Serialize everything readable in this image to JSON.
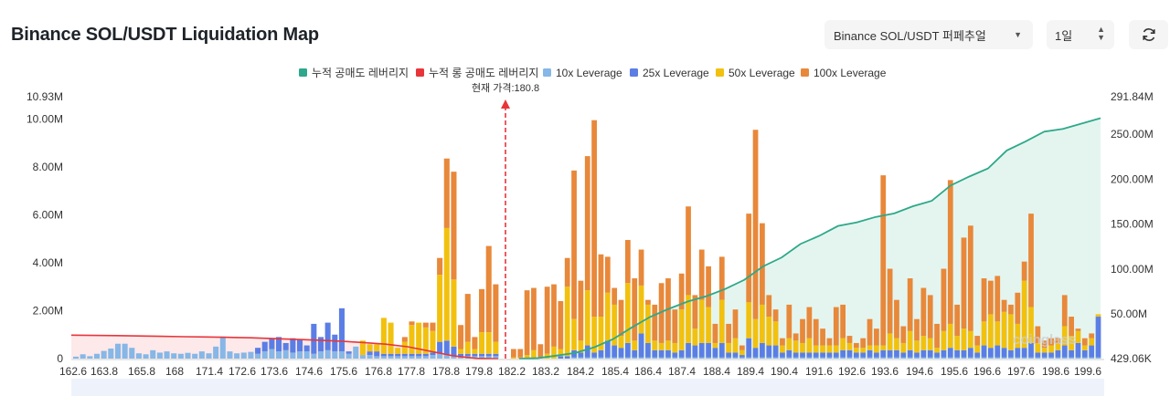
{
  "header": {
    "title": "Binance SOL/USDT Liquidation Map",
    "pair_select": "Binance SOL/USDT 퍼페추얼",
    "period_select": "1일",
    "refresh_icon": "refresh-icon",
    "dropdown_icon": "caret-down-icon",
    "stepper_icon": "up-down-caret-icon"
  },
  "chart_data": {
    "type": "bar",
    "legend": [
      {
        "name": "누적 공매도 레버리지",
        "color": "#2ea88a"
      },
      {
        "name": "누적 롱 공매도 레버리지",
        "color": "#e8353a"
      },
      {
        "name": "10x Leverage",
        "color": "#86b7e6"
      },
      {
        "name": "25x Leverage",
        "color": "#5b7ee5"
      },
      {
        "name": "50x Leverage",
        "color": "#f2c10f"
      },
      {
        "name": "100x Leverage",
        "color": "#e8883a"
      }
    ],
    "legend_position": "top-center",
    "current_price": 180.8,
    "current_price_label": "현재 가격:180.8",
    "x_ticks": [
      "162.6",
      "163.8",
      "165.8",
      "168",
      "171.4",
      "172.6",
      "173.6",
      "174.6",
      "175.6",
      "176.8",
      "177.8",
      "178.8",
      "179.8",
      "182.2",
      "183.2",
      "184.2",
      "185.4",
      "186.4",
      "187.4",
      "188.4",
      "189.4",
      "190.4",
      "191.6",
      "192.6",
      "193.6",
      "194.6",
      "195.6",
      "196.6",
      "197.6",
      "198.6",
      "199.6"
    ],
    "y_left_ticks": [
      "0",
      "2.00M",
      "4.00M",
      "6.00M",
      "8.00M",
      "10.00M",
      "10.93M"
    ],
    "y_left_max": 10930000,
    "y_right_ticks": [
      "429.06K",
      "50.00M",
      "100.00M",
      "150.00M",
      "200.00M",
      "250.00M",
      "291.84M"
    ],
    "y_right_min": 429060,
    "y_right_max": 291840000,
    "bars_left_of_price": [
      {
        "l10": 0.08,
        "l25": 0,
        "l50": 0,
        "l100": 0
      },
      {
        "l10": 0.18,
        "l25": 0,
        "l50": 0,
        "l100": 0
      },
      {
        "l10": 0.1,
        "l25": 0,
        "l50": 0,
        "l100": 0
      },
      {
        "l10": 0.2,
        "l25": 0,
        "l50": 0,
        "l100": 0
      },
      {
        "l10": 0.32,
        "l25": 0,
        "l50": 0,
        "l100": 0
      },
      {
        "l10": 0.42,
        "l25": 0,
        "l50": 0,
        "l100": 0
      },
      {
        "l10": 0.62,
        "l25": 0,
        "l50": 0,
        "l100": 0
      },
      {
        "l10": 0.62,
        "l25": 0,
        "l50": 0,
        "l100": 0
      },
      {
        "l10": 0.45,
        "l25": 0,
        "l50": 0,
        "l100": 0
      },
      {
        "l10": 0.22,
        "l25": 0,
        "l50": 0,
        "l100": 0
      },
      {
        "l10": 0.18,
        "l25": 0,
        "l50": 0,
        "l100": 0
      },
      {
        "l10": 0.35,
        "l25": 0,
        "l50": 0,
        "l100": 0
      },
      {
        "l10": 0.25,
        "l25": 0,
        "l50": 0,
        "l100": 0
      },
      {
        "l10": 0.3,
        "l25": 0,
        "l50": 0,
        "l100": 0
      },
      {
        "l10": 0.22,
        "l25": 0,
        "l50": 0,
        "l100": 0
      },
      {
        "l10": 0.2,
        "l25": 0,
        "l50": 0,
        "l100": 0
      },
      {
        "l10": 0.24,
        "l25": 0,
        "l50": 0,
        "l100": 0
      },
      {
        "l10": 0.2,
        "l25": 0,
        "l50": 0,
        "l100": 0
      },
      {
        "l10": 0.3,
        "l25": 0,
        "l50": 0,
        "l100": 0
      },
      {
        "l10": 0.22,
        "l25": 0,
        "l50": 0,
        "l100": 0
      },
      {
        "l10": 0.5,
        "l25": 0,
        "l50": 0,
        "l100": 0
      },
      {
        "l10": 0.92,
        "l25": 0,
        "l50": 0,
        "l100": 0
      },
      {
        "l10": 0.3,
        "l25": 0,
        "l50": 0,
        "l100": 0
      },
      {
        "l10": 0.22,
        "l25": 0,
        "l50": 0,
        "l100": 0
      },
      {
        "l10": 0.25,
        "l25": 0,
        "l50": 0,
        "l100": 0
      },
      {
        "l10": 0.28,
        "l25": 0,
        "l50": 0,
        "l100": 0
      },
      {
        "l10": 0.2,
        "l25": 0.25,
        "l50": 0,
        "l100": 0
      },
      {
        "l10": 0.3,
        "l25": 0.4,
        "l50": 0,
        "l100": 0
      },
      {
        "l10": 0.4,
        "l25": 0.45,
        "l50": 0,
        "l100": 0
      },
      {
        "l10": 0.3,
        "l25": 0.6,
        "l50": 0,
        "l100": 0
      },
      {
        "l10": 0.35,
        "l25": 0.3,
        "l50": 0,
        "l100": 0
      },
      {
        "l10": 0.25,
        "l25": 0.6,
        "l50": 0,
        "l100": 0
      },
      {
        "l10": 0.3,
        "l25": 0.5,
        "l50": 0,
        "l100": 0
      },
      {
        "l10": 0.3,
        "l25": 0.25,
        "l50": 0,
        "l100": 0
      },
      {
        "l10": 0.2,
        "l25": 1.25,
        "l50": 0,
        "l100": 0
      },
      {
        "l10": 0.3,
        "l25": 0.6,
        "l50": 0,
        "l100": 0
      },
      {
        "l10": 0.35,
        "l25": 1.15,
        "l50": 0,
        "l100": 0
      },
      {
        "l10": 0.3,
        "l25": 0.7,
        "l50": 0,
        "l100": 0
      },
      {
        "l10": 0.3,
        "l25": 1.8,
        "l50": 0,
        "l100": 0
      },
      {
        "l10": 0.2,
        "l25": 0.1,
        "l50": 0,
        "l100": 0
      },
      {
        "l10": 0.5,
        "l25": 0,
        "l50": 0,
        "l100": 0
      },
      {
        "l10": 0.15,
        "l25": 0,
        "l50": 0.6,
        "l100": 0
      },
      {
        "l10": 0.15,
        "l25": 0.15,
        "l50": 0.3,
        "l100": 0
      },
      {
        "l10": 0.1,
        "l25": 0.2,
        "l50": 0.3,
        "l100": 0
      },
      {
        "l10": 0.1,
        "l25": 0.1,
        "l50": 1.5,
        "l100": 0
      },
      {
        "l10": 0.1,
        "l25": 0.1,
        "l50": 1.3,
        "l100": 0
      },
      {
        "l10": 0.1,
        "l25": 0.1,
        "l50": 0.25,
        "l100": 0
      },
      {
        "l10": 0.1,
        "l25": 0.1,
        "l50": 0.5,
        "l100": 0.2
      },
      {
        "l10": 0.1,
        "l25": 0.1,
        "l50": 1.2,
        "l100": 0.15
      },
      {
        "l10": 0.1,
        "l25": 0.1,
        "l50": 1.3,
        "l100": 0
      },
      {
        "l10": 0.1,
        "l25": 0.1,
        "l50": 1.1,
        "l100": 0.2
      },
      {
        "l10": 0.15,
        "l25": 0.1,
        "l50": 0.9,
        "l100": 0.35
      },
      {
        "l10": 0.2,
        "l25": 0.5,
        "l50": 2.8,
        "l100": 0.7
      },
      {
        "l10": 0.15,
        "l25": 0.6,
        "l50": 4.7,
        "l100": 2.9
      },
      {
        "l10": 0.1,
        "l25": 0.4,
        "l50": 2.8,
        "l100": 4.5
      },
      {
        "l10": 0.1,
        "l25": 0.1,
        "l50": 0.2,
        "l100": 1.0
      },
      {
        "l10": 0.1,
        "l25": 0.1,
        "l50": 0.5,
        "l100": 2.0
      },
      {
        "l10": 0.1,
        "l25": 0.1,
        "l50": 0.2,
        "l100": 0.5
      },
      {
        "l10": 0.1,
        "l25": 0.1,
        "l50": 0.9,
        "l100": 1.8
      },
      {
        "l10": 0.1,
        "l25": 0.1,
        "l50": 0.9,
        "l100": 3.6
      },
      {
        "l10": 0.1,
        "l25": 0.1,
        "l50": 0.5,
        "l100": 2.4
      }
    ],
    "bars_right_of_price": [
      {
        "l10": 0,
        "l25": 0,
        "l50": 0.05,
        "l100": 0.35
      },
      {
        "l10": 0,
        "l25": 0,
        "l50": 0.05,
        "l100": 0.35
      },
      {
        "l10": 0,
        "l25": 0,
        "l50": 0.15,
        "l100": 2.7
      },
      {
        "l10": 0,
        "l25": 0,
        "l50": 0.35,
        "l100": 2.6
      },
      {
        "l10": 0,
        "l25": 0,
        "l50": 0.05,
        "l100": 0.55
      },
      {
        "l10": 0,
        "l25": 0,
        "l50": 0.2,
        "l100": 2.8
      },
      {
        "l10": 0,
        "l25": 0,
        "l50": 0.5,
        "l100": 2.6
      },
      {
        "l10": 0,
        "l25": 0.1,
        "l50": 0.3,
        "l100": 2.0
      },
      {
        "l10": 0,
        "l25": 0.1,
        "l50": 2.9,
        "l100": 1.2
      },
      {
        "l10": 0.05,
        "l25": 0.3,
        "l50": 1.3,
        "l100": 6.2
      },
      {
        "l10": 0.05,
        "l25": 0.2,
        "l50": 0.5,
        "l100": 2.5
      },
      {
        "l10": 0.05,
        "l25": 0.5,
        "l50": 2.3,
        "l100": 5.6
      },
      {
        "l10": 0.05,
        "l25": 0.2,
        "l50": 1.5,
        "l100": 8.2
      },
      {
        "l10": 0.05,
        "l25": 0.3,
        "l50": 1.4,
        "l100": 2.6
      },
      {
        "l10": 0.05,
        "l25": 0.7,
        "l50": 2.0,
        "l100": 1.5
      },
      {
        "l10": 0.05,
        "l25": 0.5,
        "l50": 1.7,
        "l100": 0.7
      },
      {
        "l10": 0.05,
        "l25": 0.4,
        "l50": 0.5,
        "l100": 1.5
      },
      {
        "l10": 0.05,
        "l25": 0.6,
        "l50": 2.5,
        "l100": 1.8
      },
      {
        "l10": 0.05,
        "l25": 0.3,
        "l50": 0.4,
        "l100": 2.6
      },
      {
        "l10": 0.05,
        "l25": 1.0,
        "l50": 2.0,
        "l100": 1.5
      },
      {
        "l10": 0.05,
        "l25": 0.6,
        "l50": 1.6,
        "l100": 0.2
      },
      {
        "l10": 0.05,
        "l25": 0.3,
        "l50": 0.4,
        "l100": 1.5
      },
      {
        "l10": 0.05,
        "l25": 0.3,
        "l50": 0.3,
        "l100": 2.5
      },
      {
        "l10": 0.05,
        "l25": 0.3,
        "l50": 0.4,
        "l100": 2.6
      },
      {
        "l10": 0.05,
        "l25": 0.2,
        "l50": 0.4,
        "l100": 1.4
      },
      {
        "l10": 0.05,
        "l25": 0.3,
        "l50": 1.7,
        "l100": 1.5
      },
      {
        "l10": 0.05,
        "l25": 0.6,
        "l50": 2.0,
        "l100": 3.7
      },
      {
        "l10": 0.05,
        "l25": 0.5,
        "l50": 0.7,
        "l100": 1.4
      },
      {
        "l10": 0.05,
        "l25": 0.6,
        "l50": 1.8,
        "l100": 2.1
      },
      {
        "l10": 0.05,
        "l25": 0.6,
        "l50": 1.5,
        "l100": 1.7
      },
      {
        "l10": 0.05,
        "l25": 0.4,
        "l50": 0.2,
        "l100": 0.8
      },
      {
        "l10": 0.05,
        "l25": 0.6,
        "l50": 1.8,
        "l100": 1.8
      },
      {
        "l10": 0.05,
        "l25": 0.2,
        "l50": 0.4,
        "l100": 0.8
      },
      {
        "l10": 0.05,
        "l25": 0.2,
        "l50": 0.6,
        "l100": 1.2
      },
      {
        "l10": 0.05,
        "l25": 0.1,
        "l50": 0.2,
        "l100": 0.2
      },
      {
        "l10": 0.05,
        "l25": 0.8,
        "l50": 1.5,
        "l100": 3.7
      },
      {
        "l10": 0.05,
        "l25": 0.4,
        "l50": 1.2,
        "l100": 7.9
      },
      {
        "l10": 0.05,
        "l25": 0.6,
        "l50": 1.6,
        "l100": 3.4
      },
      {
        "l10": 0.05,
        "l25": 0.5,
        "l50": 1.2,
        "l100": 0.9
      },
      {
        "l10": 0.05,
        "l25": 0.5,
        "l50": 1.0,
        "l100": 0.5
      },
      {
        "l10": 0.05,
        "l25": 0.2,
        "l50": 0.3,
        "l100": 0.3
      },
      {
        "l10": 0.05,
        "l25": 0.3,
        "l50": 0.5,
        "l100": 1.4
      },
      {
        "l10": 0.05,
        "l25": 0.2,
        "l50": 0.5,
        "l100": 0.3
      },
      {
        "l10": 0.05,
        "l25": 0.2,
        "l50": 0.4,
        "l100": 1.0
      },
      {
        "l10": 0.05,
        "l25": 0.2,
        "l50": 0.6,
        "l100": 1.3
      },
      {
        "l10": 0.05,
        "l25": 0.2,
        "l50": 0.3,
        "l100": 1.1
      },
      {
        "l10": 0.05,
        "l25": 0.2,
        "l50": 0.3,
        "l100": 0.7
      },
      {
        "l10": 0.05,
        "l25": 0.2,
        "l50": 0.3,
        "l100": 0.3
      },
      {
        "l10": 0.05,
        "l25": 0.2,
        "l50": 0.3,
        "l100": 1.6
      },
      {
        "l10": 0.05,
        "l25": 0.3,
        "l50": 0.5,
        "l100": 1.4
      },
      {
        "l10": 0.05,
        "l25": 0.3,
        "l50": 0.3,
        "l100": 0.3
      },
      {
        "l10": 0.05,
        "l25": 0.2,
        "l50": 0.2,
        "l100": 0.2
      },
      {
        "l10": 0.05,
        "l25": 0.2,
        "l50": 0.2,
        "l100": 0.4
      },
      {
        "l10": 0.05,
        "l25": 0.3,
        "l50": 0.2,
        "l100": 1.1
      },
      {
        "l10": 0.05,
        "l25": 0.2,
        "l50": 0.3,
        "l100": 0.7
      },
      {
        "l10": 0.05,
        "l25": 0.3,
        "l50": 0.2,
        "l100": 7.1
      },
      {
        "l10": 0.05,
        "l25": 0.3,
        "l50": 0.7,
        "l100": 2.7
      },
      {
        "l10": 0.05,
        "l25": 0.3,
        "l50": 0.5,
        "l100": 1.6
      },
      {
        "l10": 0.05,
        "l25": 0.2,
        "l50": 0.4,
        "l100": 0.7
      },
      {
        "l10": 0.05,
        "l25": 0.3,
        "l50": 0.8,
        "l100": 2.2
      },
      {
        "l10": 0.05,
        "l25": 0.2,
        "l50": 0.5,
        "l100": 0.9
      },
      {
        "l10": 0.05,
        "l25": 0.3,
        "l50": 0.6,
        "l100": 2.0
      },
      {
        "l10": 0.05,
        "l25": 0.3,
        "l50": 0.5,
        "l100": 1.8
      },
      {
        "l10": 0.05,
        "l25": 0.2,
        "l50": 0.2,
        "l100": 1.0
      },
      {
        "l10": 0.05,
        "l25": 0.3,
        "l50": 0.8,
        "l100": 2.6
      },
      {
        "l10": 0.05,
        "l25": 0.4,
        "l50": 1.0,
        "l100": 6.0
      },
      {
        "l10": 0.05,
        "l25": 0.3,
        "l50": 0.6,
        "l100": 1.3
      },
      {
        "l10": 0.05,
        "l25": 0.3,
        "l50": 0.9,
        "l100": 3.8
      },
      {
        "l10": 0.05,
        "l25": 0.4,
        "l50": 0.7,
        "l100": 4.4
      },
      {
        "l10": 0.05,
        "l25": 0.2,
        "l50": 0.3,
        "l100": 0.4
      },
      {
        "l10": 0.05,
        "l25": 0.5,
        "l50": 1.0,
        "l100": 1.8
      },
      {
        "l10": 0.05,
        "l25": 0.4,
        "l50": 1.4,
        "l100": 1.4
      },
      {
        "l10": 0.05,
        "l25": 0.5,
        "l50": 1.0,
        "l100": 1.9
      },
      {
        "l10": 0.05,
        "l25": 0.4,
        "l50": 1.5,
        "l100": 0.5
      },
      {
        "l10": 0.05,
        "l25": 0.3,
        "l50": 1.5,
        "l100": 0.4
      },
      {
        "l10": 0.05,
        "l25": 0.4,
        "l50": 1.0,
        "l100": 1.3
      },
      {
        "l10": 0.05,
        "l25": 0.4,
        "l50": 2.8,
        "l100": 0.8
      },
      {
        "l10": 0.05,
        "l25": 0.6,
        "l50": 1.5,
        "l100": 3.9
      },
      {
        "l10": 0.05,
        "l25": 0.2,
        "l50": 0.4,
        "l100": 0.7
      },
      {
        "l10": 0.05,
        "l25": 0.2,
        "l50": 0.2,
        "l100": 0.3
      },
      {
        "l10": 0.05,
        "l25": 0.2,
        "l50": 0.3,
        "l100": 0.3
      },
      {
        "l10": 0.05,
        "l25": 0.3,
        "l50": 0.3,
        "l100": 0.2
      },
      {
        "l10": 0.05,
        "l25": 0.5,
        "l50": 0.8,
        "l100": 1.3
      },
      {
        "l10": 0.05,
        "l25": 0.3,
        "l50": 0.6,
        "l100": 0.8
      },
      {
        "l10": 0.05,
        "l25": 0.6,
        "l50": 0.5,
        "l100": 0.1
      },
      {
        "l10": 0.05,
        "l25": 0.3,
        "l50": 0.2,
        "l100": 0.3
      },
      {
        "l10": 0.05,
        "l25": 0.5,
        "l50": 0.3,
        "l100": 0.2
      },
      {
        "l10": 0.05,
        "l25": 1.7,
        "l50": 0.1,
        "l100": 0
      }
    ],
    "cumulative_long": [
      26.5,
      26.3,
      26.0,
      25.6,
      25.2,
      24.8,
      24.5,
      24.1,
      23.6,
      22.7,
      21.8,
      20.9,
      19.8,
      18.3,
      16.5,
      13.5,
      8.5,
      3.5,
      0.8,
      0.3
    ],
    "cumulative_short": [
      0.4,
      1.0,
      3.8,
      6.8,
      13.0,
      22.0,
      35.0,
      47.0,
      56.0,
      64.0,
      70.0,
      78.0,
      88.0,
      103.0,
      113.0,
      128.0,
      137.0,
      148.0,
      152.0,
      158.0,
      162.0,
      170.0,
      176.0,
      193.0,
      203.0,
      212.0,
      232.0,
      242.0,
      253.0,
      256.0,
      262.0,
      268.0
    ],
    "watermark": "coinglass"
  }
}
